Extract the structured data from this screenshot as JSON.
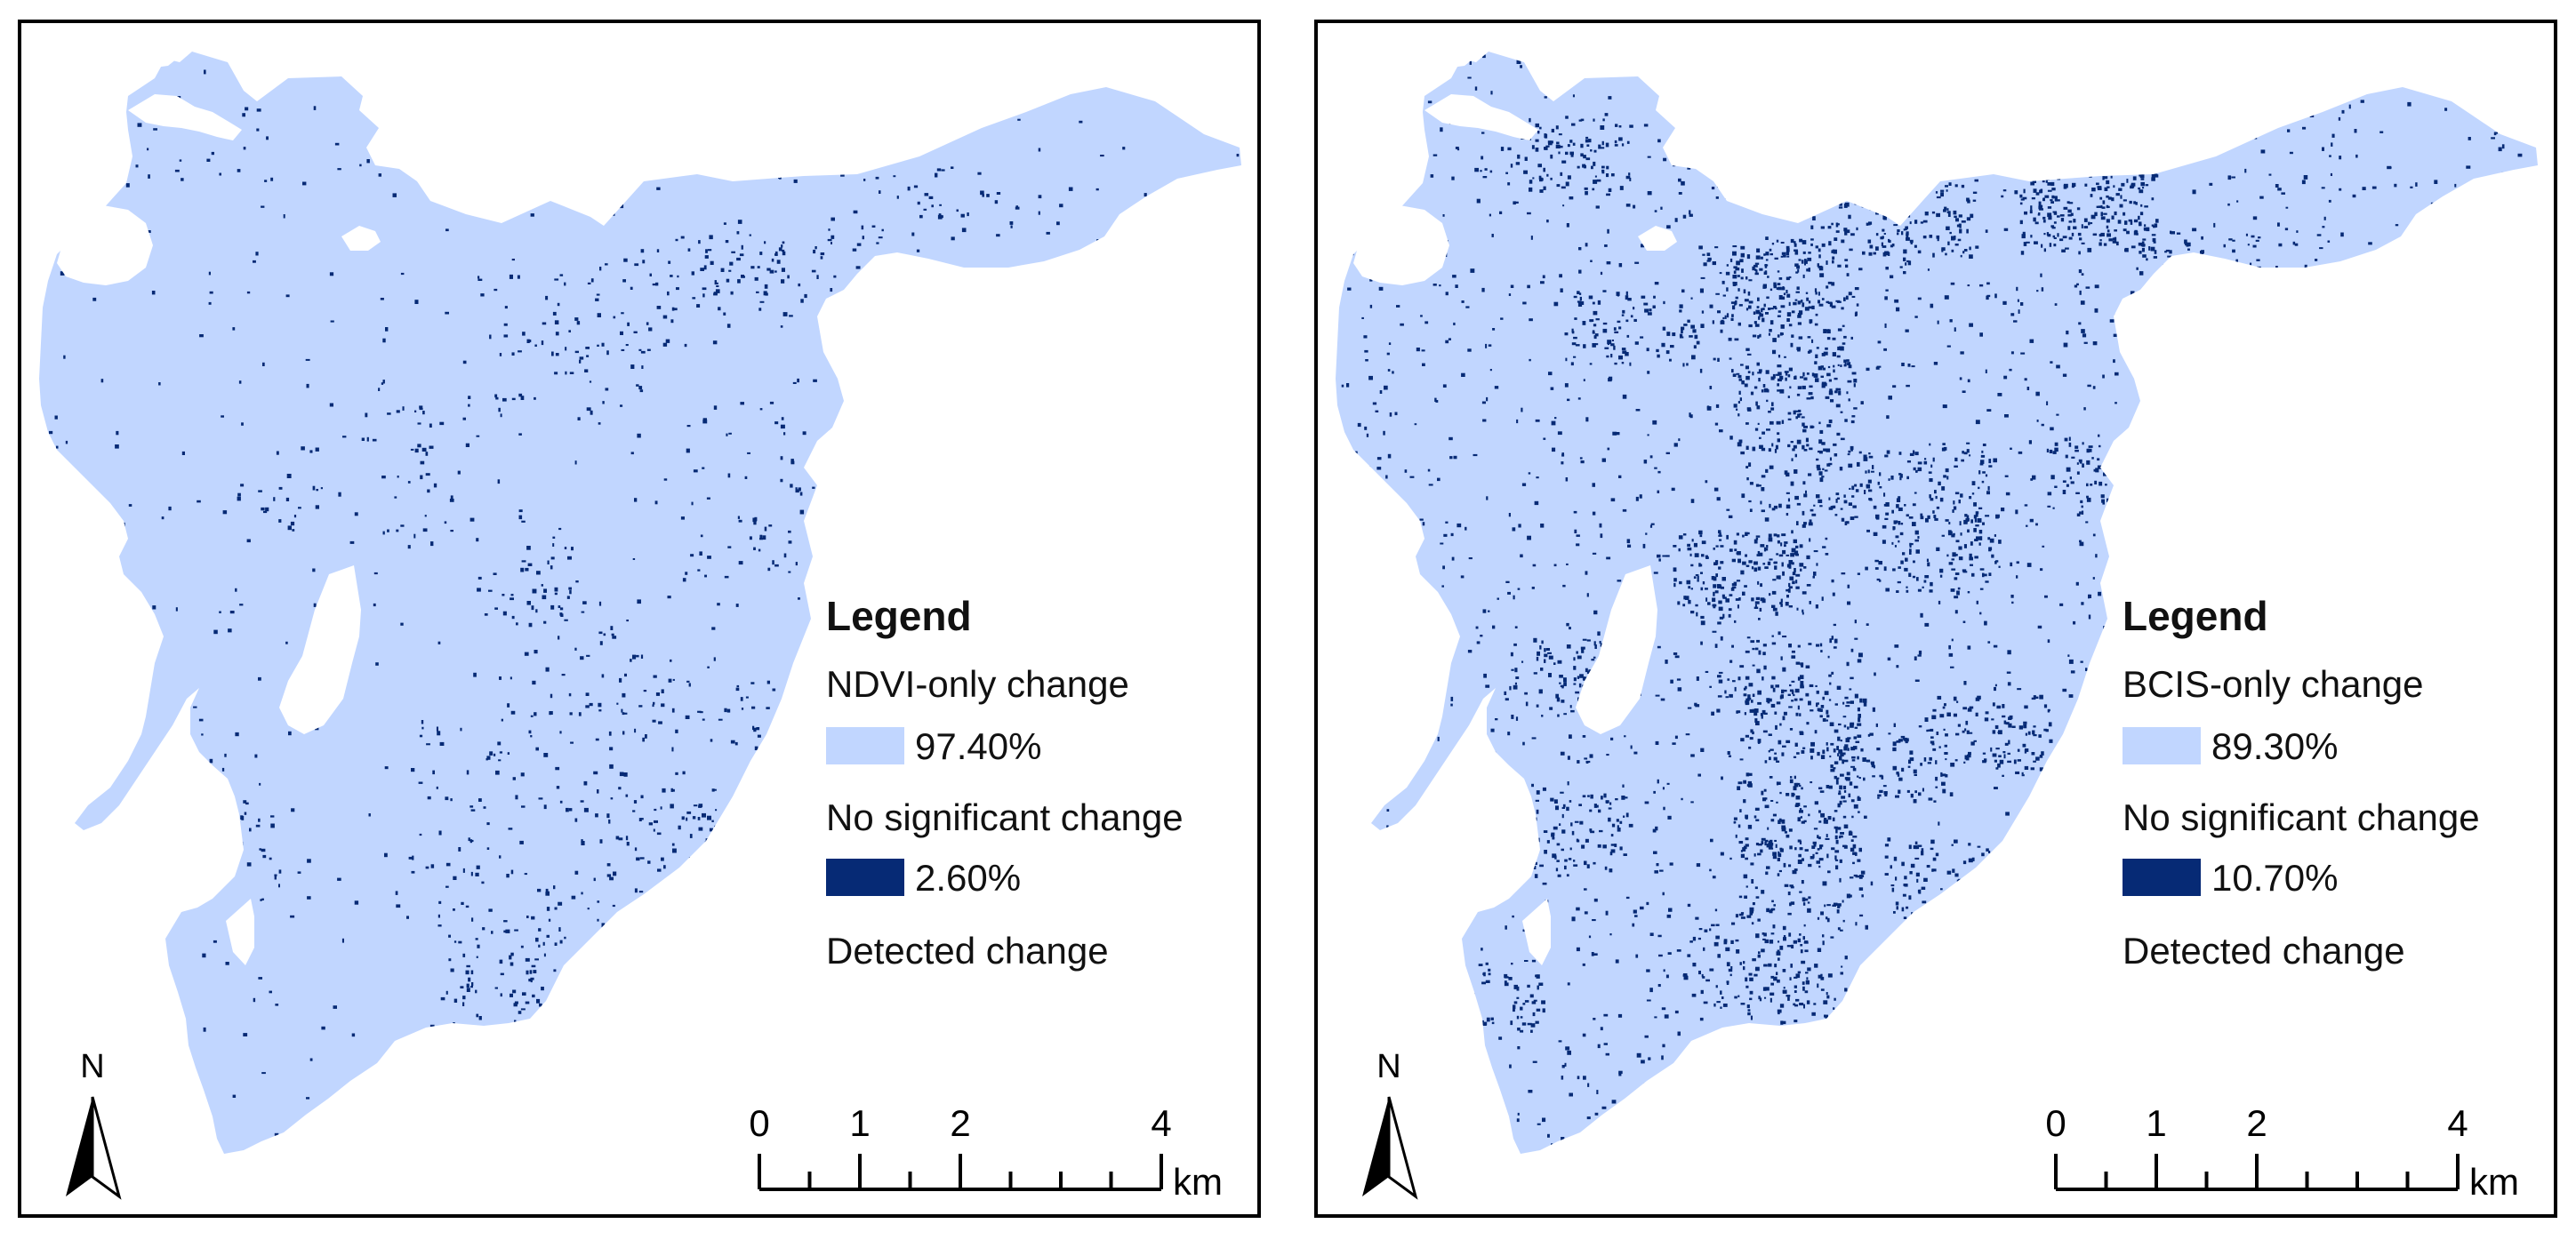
{
  "colors": {
    "stable": "#c1d6ff",
    "change": "#062a75",
    "frame": "#000000"
  },
  "panels": [
    {
      "legend_title": "Legend",
      "legend_subtitle": "NDVI-only change",
      "row1_value": "97.40%",
      "row1_label": "No significant change",
      "row2_value": "2.60%",
      "row2_label": "Detected change",
      "north_label": "N",
      "scale_ticks": [
        "0",
        "1",
        "2",
        "4"
      ],
      "scale_unit": "km",
      "change_density": 0.026
    },
    {
      "legend_title": "Legend",
      "legend_subtitle": "BCIS-only change",
      "row1_value": "89.30%",
      "row1_label": "No significant change",
      "row2_value": "10.70%",
      "row2_label": "Detected change",
      "north_label": "N",
      "scale_ticks": [
        "0",
        "1",
        "2",
        "4"
      ],
      "scale_unit": "km",
      "change_density": 0.107
    }
  ]
}
